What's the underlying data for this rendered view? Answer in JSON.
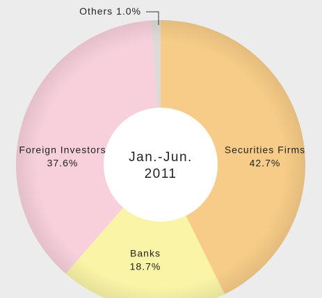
{
  "chart_data": {
    "type": "donut",
    "title": [
      "Jan.-Jun.",
      "2011"
    ],
    "categories": [
      "Securities Firms",
      "Banks",
      "Foreign Investors",
      "Others"
    ],
    "values": [
      42.7,
      18.7,
      37.6,
      1.0
    ],
    "value_labels": [
      "42.7%",
      "18.7%",
      "37.6%",
      "1.0%"
    ],
    "colors": [
      "#f7cc88",
      "#f9f4a6",
      "#f7d0dc",
      "#dedbd6"
    ]
  }
}
